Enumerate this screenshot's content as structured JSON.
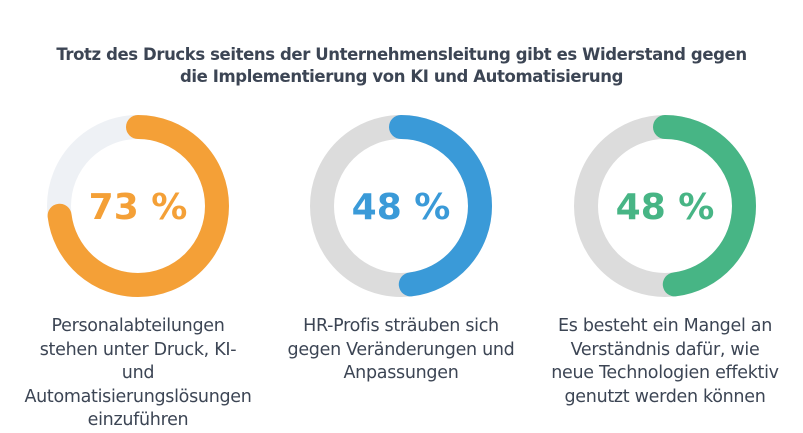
{
  "title": {
    "line1": "Trotz des Drucks seitens der Unternehmensleitung gibt es Widerstand gegen",
    "line2": "die Implementierung von KI und Automatisierung"
  },
  "chart_data": [
    {
      "type": "pie",
      "value": 73,
      "label": "73 %",
      "color": "#f4a037",
      "track_color": "#eef1f5",
      "caption": "Personalabteilungen stehen unter Druck, KI- und Automatisierungslösungen einzuführen"
    },
    {
      "type": "pie",
      "value": 48,
      "label": "48 %",
      "color": "#3a9ad8",
      "track_color": "#dcdcdc",
      "caption": "HR-Profis sträuben sich gegen Veränderungen und Anpassungen"
    },
    {
      "type": "pie",
      "value": 48,
      "label": "48 %",
      "color": "#47b585",
      "track_color": "#dcdcdc",
      "caption": "Es besteht ein Mangel an Verständnis dafür, wie neue Technologien effektiv genutzt werden können"
    }
  ]
}
